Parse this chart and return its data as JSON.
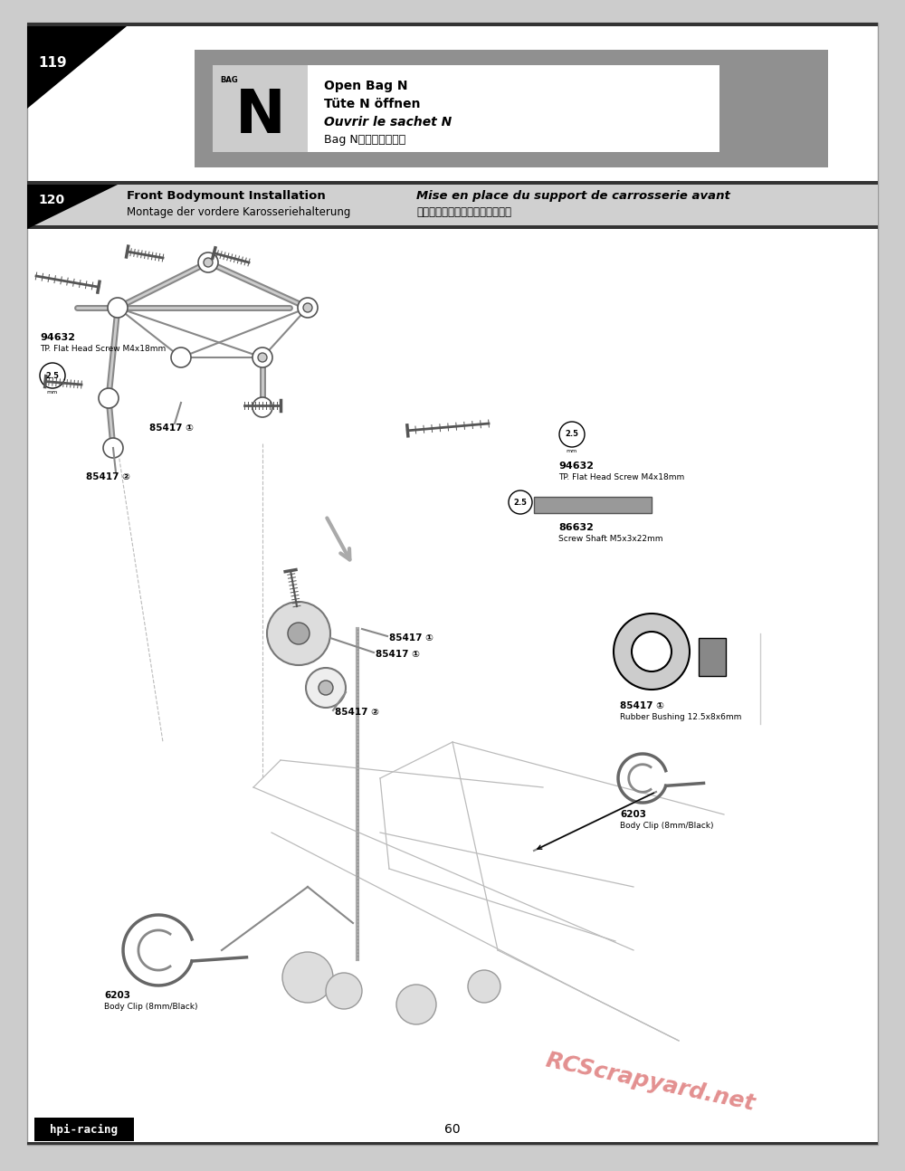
{
  "page_number": "60",
  "step_number_1": "119",
  "step_number_2": "120",
  "outer_bg": "#cccccc",
  "page_bg": "#ffffff",
  "header_bg": "#888888",
  "step_bar_bg": "#c8c8c8",
  "bag_label": "N",
  "bag_sublabel": "BAG",
  "bag_text_lines": [
    "Open Bag N",
    "Tüte N öffnen",
    "Ouvrir le sachet N",
    "Bag Nを開封します．"
  ],
  "step2_title_en": "Front Bodymount Installation",
  "step2_title_de": "Montage der vordere Karosseriehalterung",
  "step2_title_fr": "Mise en place du support de carrosserie avant",
  "step2_title_jp": "フロントボディマウントの取付け",
  "footer_text": "hpi-racing",
  "watermark": "RCScrapyard.net",
  "screw_color": "#888888",
  "shaft_color": "#aaaaaa",
  "line_color": "#777777",
  "part_line_color": "#555555"
}
